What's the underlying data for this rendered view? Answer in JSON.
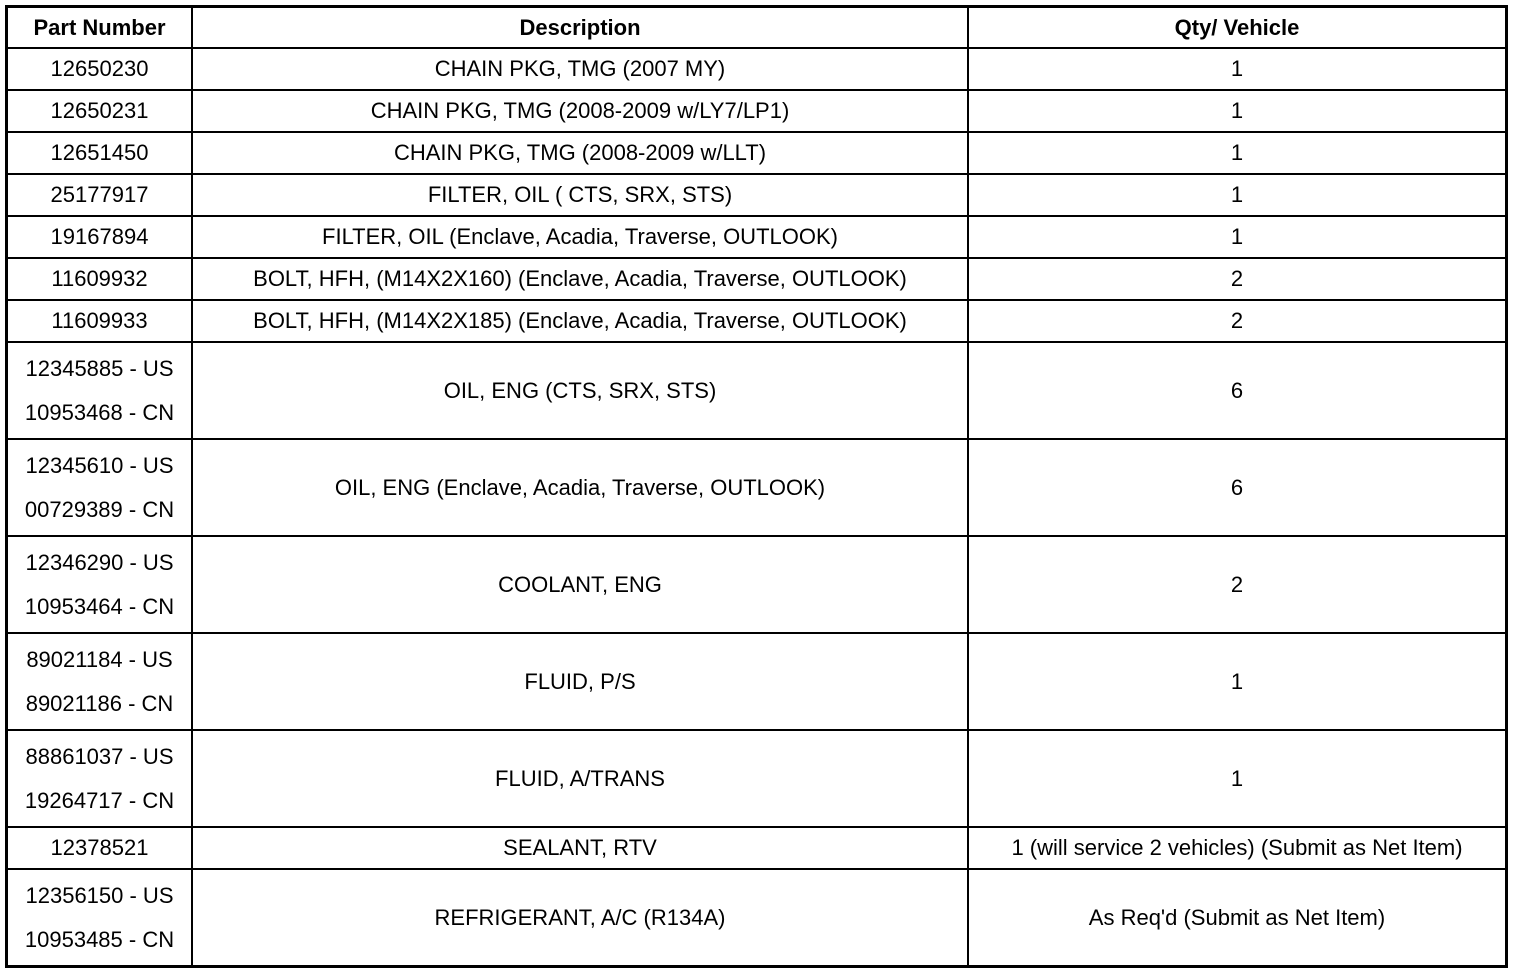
{
  "table": {
    "headers": [
      "Part Number",
      "Description",
      "Qty/ Vehicle"
    ],
    "rows": [
      {
        "part": [
          "12650230"
        ],
        "description": "CHAIN PKG, TMG (2007 MY)",
        "qty": "1"
      },
      {
        "part": [
          "12650231"
        ],
        "description": "CHAIN PKG, TMG (2008-2009 w/LY7/LP1)",
        "qty": "1"
      },
      {
        "part": [
          "12651450"
        ],
        "description": "CHAIN PKG, TMG (2008-2009 w/LLT)",
        "qty": "1"
      },
      {
        "part": [
          "25177917"
        ],
        "description": "FILTER, OIL ( CTS, SRX, STS)",
        "qty": "1"
      },
      {
        "part": [
          "19167894"
        ],
        "description": "FILTER, OIL (Enclave, Acadia, Traverse, OUTLOOK)",
        "qty": "1"
      },
      {
        "part": [
          "11609932"
        ],
        "description": "BOLT, HFH, (M14X2X160) (Enclave, Acadia, Traverse, OUTLOOK)",
        "qty": "2"
      },
      {
        "part": [
          "11609933"
        ],
        "description": "BOLT, HFH, (M14X2X185) (Enclave, Acadia, Traverse, OUTLOOK)",
        "qty": "2"
      },
      {
        "part": [
          "12345885 - US",
          "10953468 - CN"
        ],
        "description": "OIL, ENG (CTS, SRX, STS)",
        "qty": "6"
      },
      {
        "part": [
          "12345610 - US",
          "00729389 - CN"
        ],
        "description": "OIL, ENG (Enclave, Acadia, Traverse, OUTLOOK)",
        "qty": "6"
      },
      {
        "part": [
          "12346290 - US",
          "10953464 - CN"
        ],
        "description": "COOLANT, ENG",
        "qty": "2"
      },
      {
        "part": [
          "89021184 - US",
          "89021186 - CN"
        ],
        "description": "FLUID, P/S",
        "qty": "1"
      },
      {
        "part": [
          "88861037 - US",
          "19264717 - CN"
        ],
        "description": "FLUID, A/TRANS",
        "qty": "1"
      },
      {
        "part": [
          "12378521"
        ],
        "description": "SEALANT, RTV",
        "qty": "1 (will service 2 vehicles) (Submit as Net Item)"
      },
      {
        "part": [
          "12356150 - US",
          "10953485 - CN"
        ],
        "description": "REFRIGERANT, A/C (R134A)",
        "qty": "As Req'd (Submit as Net Item)"
      }
    ]
  }
}
